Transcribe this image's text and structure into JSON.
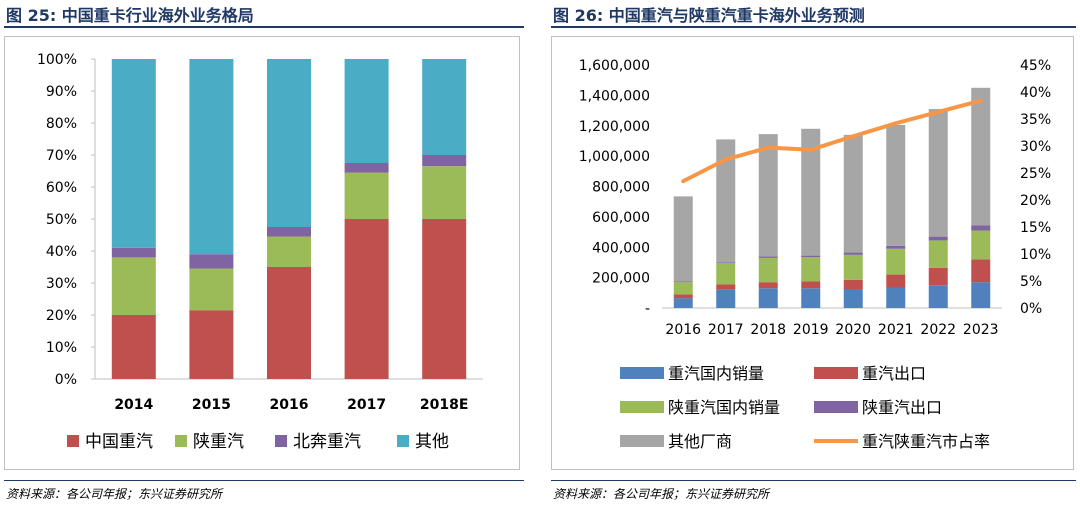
{
  "figures": [
    {
      "title": "图 25: 中国重卡行业海外业务格局",
      "source": "资料来源：各公司年报；东兴证券研究所"
    },
    {
      "title": "图 26: 中国重汽与陕重汽重卡海外业务预测",
      "source": "资料来源：各公司年报；东兴证券研究所"
    }
  ],
  "chart_data": [
    {
      "type": "bar",
      "stacked": true,
      "categories": [
        "2014",
        "2015",
        "2016",
        "2017",
        "2018E"
      ],
      "y_ticks": [
        "0%",
        "10%",
        "20%",
        "30%",
        "40%",
        "50%",
        "60%",
        "70%",
        "80%",
        "90%",
        "100%"
      ],
      "ylim": [
        0,
        1
      ],
      "grid": false,
      "legend_position": "bottom",
      "series": [
        {
          "name": "中国重汽",
          "color": "#c0504d",
          "values": [
            0.2,
            0.215,
            0.35,
            0.5,
            0.5
          ]
        },
        {
          "name": "陕重汽",
          "color": "#9bbb59",
          "values": [
            0.18,
            0.13,
            0.095,
            0.145,
            0.165
          ]
        },
        {
          "name": "北奔重汽",
          "color": "#8064a2",
          "values": [
            0.03,
            0.045,
            0.03,
            0.03,
            0.035
          ]
        },
        {
          "name": "其他",
          "color": "#4bacc6",
          "values": [
            0.59,
            0.61,
            0.525,
            0.325,
            0.3
          ]
        }
      ]
    },
    {
      "type": "bar",
      "stacked": true,
      "categories": [
        "2016",
        "2017",
        "2018",
        "2019",
        "2020",
        "2021",
        "2022",
        "2023"
      ],
      "y_ticks": [
        "-",
        "200,000",
        "400,000",
        "600,000",
        "800,000",
        "1,000,000",
        "1,200,000",
        "1,400,000",
        "1,600,000"
      ],
      "ylim": [
        0,
        1600000
      ],
      "y2_ticks": [
        "0%",
        "5%",
        "10%",
        "15%",
        "20%",
        "25%",
        "30%",
        "35%",
        "40%",
        "45%"
      ],
      "y2lim": [
        0,
        0.45
      ],
      "grid": false,
      "legend_position": "bottom",
      "series": [
        {
          "name": "重汽国内销量",
          "type": "bar",
          "color": "#4f81bd",
          "values": [
            65000,
            120000,
            130000,
            130000,
            125000,
            135000,
            150000,
            170000
          ]
        },
        {
          "name": "重汽出口",
          "type": "bar",
          "color": "#c0504d",
          "values": [
            25000,
            35000,
            40000,
            45000,
            60000,
            85000,
            115000,
            150000
          ]
        },
        {
          "name": "陕重汽国内销量",
          "type": "bar",
          "color": "#9bbb59",
          "values": [
            80000,
            140000,
            160000,
            160000,
            165000,
            170000,
            180000,
            190000
          ]
        },
        {
          "name": "陕重汽出口",
          "type": "bar",
          "color": "#8064a2",
          "values": [
            5000,
            5000,
            10000,
            10000,
            15000,
            20000,
            25000,
            35000
          ]
        },
        {
          "name": "其他厂商",
          "type": "bar",
          "color": "#a6a6a6",
          "values": [
            560000,
            810000,
            805000,
            835000,
            775000,
            795000,
            840000,
            905000
          ]
        },
        {
          "name": "重汽陕重汽市占率",
          "type": "line",
          "axis": "right",
          "color": "#f79646",
          "values": [
            0.235,
            0.275,
            0.297,
            0.293,
            0.318,
            0.342,
            0.363,
            0.384
          ]
        }
      ]
    }
  ]
}
